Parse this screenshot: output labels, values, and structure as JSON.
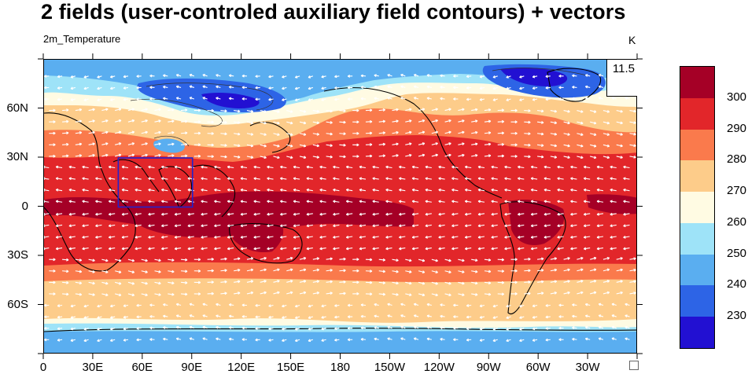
{
  "title": "2 fields (user-controled auxiliary field contours) + vectors",
  "subtitle_left": "2m_Temperature",
  "subtitle_right": "K",
  "reference_vector_value": "11.5",
  "lat_labels": [
    "60N",
    "30N",
    "0",
    "30S",
    "60S"
  ],
  "lon_labels": [
    "0",
    "30E",
    "60E",
    "90E",
    "120E",
    "150E",
    "180",
    "150W",
    "120W",
    "90W",
    "60W",
    "30W"
  ],
  "colorbar": {
    "labels": [
      "300",
      "290",
      "280",
      "270",
      "260",
      "250",
      "240",
      "230"
    ],
    "colors": [
      "#a50026",
      "#e2262a",
      "#fa7a4c",
      "#fdcc8a",
      "#fffbe3",
      "#9ee3f8",
      "#5aaef0",
      "#2d64e6",
      "#2210d2"
    ]
  },
  "selection_box": {
    "lon_min": 45,
    "lon_max": 90,
    "lat_min": 0,
    "lat_max": 30,
    "color": "#2222cc"
  }
}
